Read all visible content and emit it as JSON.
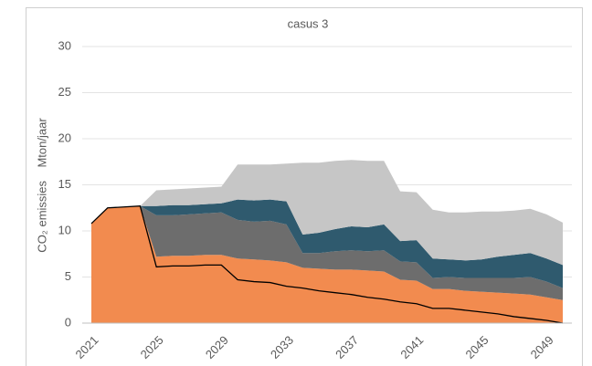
{
  "chart_data": {
    "type": "area",
    "stacked": true,
    "title": "casus 3",
    "ylabel": "CO₂ emissies    Mton/jaar",
    "x": [
      2021,
      2022,
      2023,
      2024,
      2025,
      2026,
      2027,
      2028,
      2029,
      2030,
      2031,
      2032,
      2033,
      2034,
      2035,
      2036,
      2037,
      2038,
      2039,
      2040,
      2041,
      2042,
      2043,
      2044,
      2045,
      2046,
      2047,
      2048,
      2049,
      2050
    ],
    "xlim": [
      2021,
      2050
    ],
    "xticks": [
      2021,
      2025,
      2029,
      2033,
      2037,
      2041,
      2045,
      2049
    ],
    "ylim": [
      0,
      30
    ],
    "yticks": [
      0,
      5,
      10,
      15,
      20,
      25,
      30
    ],
    "grid": true,
    "series": [
      {
        "color": "#f28b4f",
        "values": [
          10.8,
          12.5,
          12.6,
          12.7,
          7.2,
          7.3,
          7.3,
          7.4,
          7.4,
          7.0,
          6.9,
          6.8,
          6.6,
          6.0,
          5.9,
          5.8,
          5.8,
          5.7,
          5.6,
          4.7,
          4.6,
          3.7,
          3.7,
          3.5,
          3.4,
          3.3,
          3.2,
          3.1,
          2.8,
          2.5
        ]
      },
      {
        "color": "#6d6d6d",
        "values": [
          0,
          0,
          0,
          0,
          4.5,
          4.4,
          4.5,
          4.5,
          4.6,
          4.2,
          4.1,
          4.3,
          4.1,
          1.6,
          1.7,
          2.0,
          2.1,
          2.1,
          2.3,
          2.0,
          2.0,
          1.2,
          1.3,
          1.4,
          1.5,
          1.6,
          1.7,
          1.9,
          1.7,
          1.3
        ]
      },
      {
        "color": "#2f5a6e",
        "values": [
          0,
          0,
          0,
          0,
          1.0,
          1.1,
          1.0,
          1.0,
          1.0,
          2.2,
          2.3,
          2.3,
          2.5,
          2.0,
          2.2,
          2.4,
          2.6,
          2.6,
          2.8,
          2.2,
          2.4,
          2.1,
          1.9,
          1.9,
          2.0,
          2.3,
          2.5,
          2.6,
          2.5,
          2.5
        ]
      },
      {
        "color": "#c6c6c6",
        "values": [
          0,
          0,
          0,
          0,
          1.7,
          1.7,
          1.8,
          1.8,
          1.8,
          3.8,
          3.9,
          3.8,
          4.1,
          7.8,
          7.6,
          7.4,
          7.2,
          7.2,
          6.9,
          5.4,
          5.2,
          5.3,
          5.1,
          5.2,
          5.2,
          4.9,
          4.8,
          4.8,
          4.8,
          4.6
        ]
      },
      {
        "color": "#000000",
        "style": "line",
        "values": [
          10.8,
          12.5,
          12.6,
          12.7,
          6.1,
          6.2,
          6.2,
          6.3,
          6.3,
          4.7,
          4.5,
          4.4,
          4.0,
          3.8,
          3.5,
          3.3,
          3.1,
          2.8,
          2.6,
          2.3,
          2.1,
          1.6,
          1.6,
          1.4,
          1.2,
          1.0,
          0.7,
          0.5,
          0.3,
          0.0
        ]
      }
    ]
  }
}
